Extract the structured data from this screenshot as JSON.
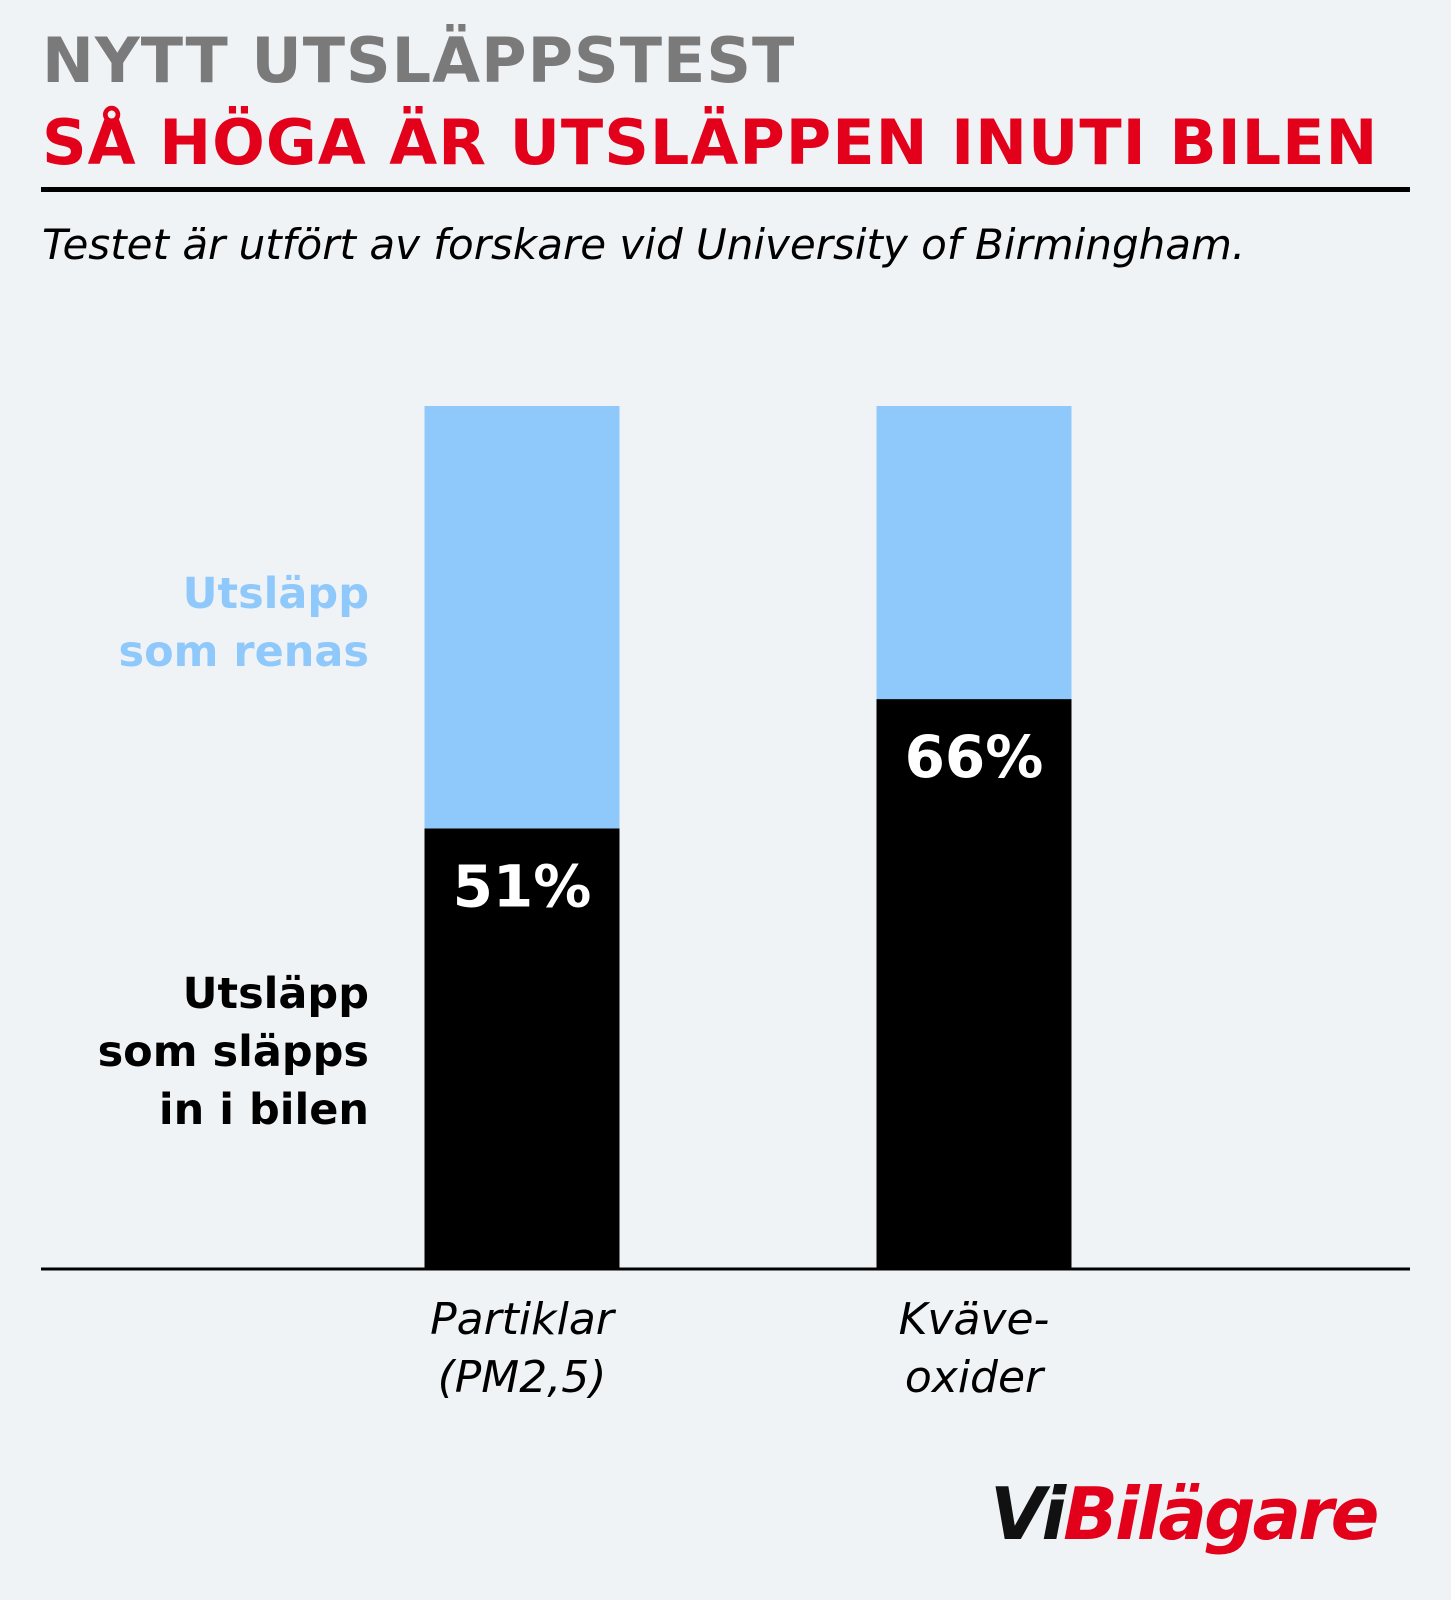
{
  "header": {
    "kicker": "NYTT UTSLÄPPSTEST",
    "headline": "SÅ HÖGA ÄR UTSLÄPPEN INUTI BILEN",
    "subtitle": "Testet är utfört av forskare vid University of Birmingham."
  },
  "legend": {
    "light_line1": "Utsläpp",
    "light_line2": "som renas",
    "dark_line1": "Utsläpp",
    "dark_line2": "som släpps",
    "dark_line3": "in i bilen"
  },
  "colors": {
    "background": "#f0f3f6",
    "kicker": "#7a7a7a",
    "headline": "#e3001b",
    "light_series": "#8fc8fb",
    "dark_series": "#000000"
  },
  "chart_data": {
    "type": "bar",
    "stacked": true,
    "categories": [
      [
        "Partiklar",
        "(PM2,5)"
      ],
      [
        "Kväve-",
        "oxider"
      ]
    ],
    "series": [
      {
        "name": "Utsläpp som släpps in i bilen",
        "values": [
          51,
          66
        ],
        "labels": [
          "51%",
          "66%"
        ],
        "color": "#000000"
      },
      {
        "name": "Utsläpp som renas",
        "values": [
          49,
          34
        ],
        "color": "#8fc8fb"
      }
    ],
    "ylim": [
      0,
      100
    ],
    "grid": false,
    "legend_position": "left"
  },
  "logo": {
    "part1": "Vi",
    "part2": "Bilägare"
  }
}
